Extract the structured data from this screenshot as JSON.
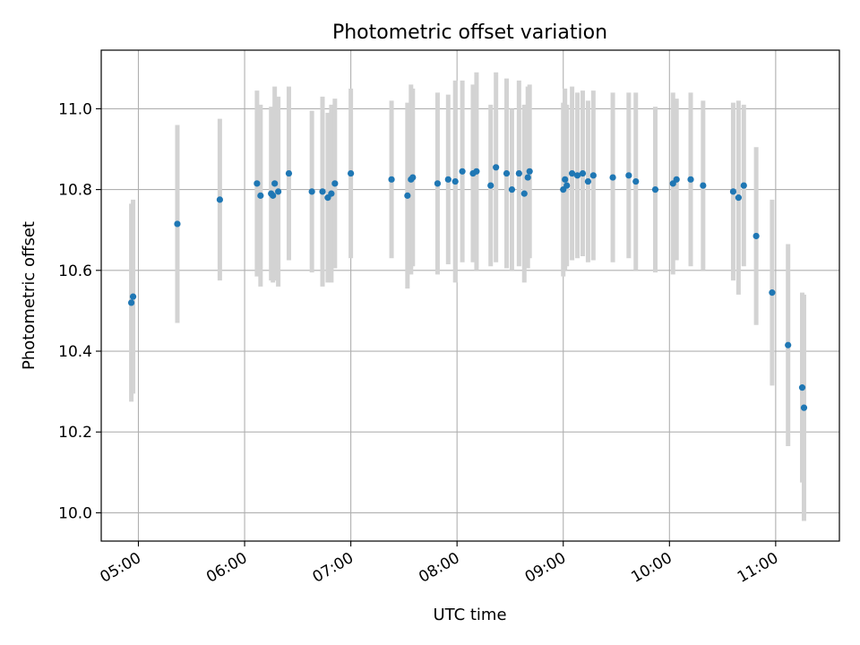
{
  "chart_data": {
    "type": "scatter",
    "title": "Photometric offset variation",
    "xlabel": "UTC time",
    "ylabel": "Photometric offset",
    "xlim": [
      "04:39",
      "11:36"
    ],
    "ylim": [
      9.93,
      11.145
    ],
    "x_ticks": [
      "05:00",
      "06:00",
      "07:00",
      "08:00",
      "09:00",
      "10:00",
      "11:00"
    ],
    "y_ticks": [
      "10.0",
      "10.2",
      "10.4",
      "10.6",
      "10.8",
      "11.0"
    ],
    "grid": true,
    "colors": {
      "points": "#1f77b4",
      "errorbars": "#d3d3d3",
      "grid": "#b0b0b0"
    },
    "points": [
      {
        "time": "04:56",
        "y": 10.52,
        "err": 0.245
      },
      {
        "time": "04:57",
        "y": 10.535,
        "err": 0.24
      },
      {
        "time": "05:22",
        "y": 10.715,
        "err": 0.245
      },
      {
        "time": "05:46",
        "y": 10.775,
        "err": 0.2
      },
      {
        "time": "06:07",
        "y": 10.815,
        "err": 0.23
      },
      {
        "time": "06:09",
        "y": 10.785,
        "err": 0.225
      },
      {
        "time": "06:15",
        "y": 10.79,
        "err": 0.215
      },
      {
        "time": "06:16",
        "y": 10.785,
        "err": 0.215
      },
      {
        "time": "06:17",
        "y": 10.815,
        "err": 0.24
      },
      {
        "time": "06:19",
        "y": 10.795,
        "err": 0.235
      },
      {
        "time": "06:25",
        "y": 10.84,
        "err": 0.215
      },
      {
        "time": "06:38",
        "y": 10.795,
        "err": 0.2
      },
      {
        "time": "06:44",
        "y": 10.795,
        "err": 0.235
      },
      {
        "time": "06:47",
        "y": 10.78,
        "err": 0.21
      },
      {
        "time": "06:49",
        "y": 10.79,
        "err": 0.22
      },
      {
        "time": "06:51",
        "y": 10.815,
        "err": 0.21
      },
      {
        "time": "07:00",
        "y": 10.84,
        "err": 0.21
      },
      {
        "time": "07:23",
        "y": 10.825,
        "err": 0.195
      },
      {
        "time": "07:32",
        "y": 10.785,
        "err": 0.23
      },
      {
        "time": "07:34",
        "y": 10.825,
        "err": 0.235
      },
      {
        "time": "07:35",
        "y": 10.83,
        "err": 0.22
      },
      {
        "time": "07:49",
        "y": 10.815,
        "err": 0.225
      },
      {
        "time": "07:55",
        "y": 10.825,
        "err": 0.21
      },
      {
        "time": "07:59",
        "y": 10.82,
        "err": 0.25
      },
      {
        "time": "08:03",
        "y": 10.845,
        "err": 0.225
      },
      {
        "time": "08:09",
        "y": 10.84,
        "err": 0.22
      },
      {
        "time": "08:11",
        "y": 10.845,
        "err": 0.245
      },
      {
        "time": "08:19",
        "y": 10.81,
        "err": 0.2
      },
      {
        "time": "08:22",
        "y": 10.855,
        "err": 0.235
      },
      {
        "time": "08:28",
        "y": 10.84,
        "err": 0.235
      },
      {
        "time": "08:31",
        "y": 10.8,
        "err": 0.2
      },
      {
        "time": "08:35",
        "y": 10.84,
        "err": 0.23
      },
      {
        "time": "08:38",
        "y": 10.79,
        "err": 0.22
      },
      {
        "time": "08:40",
        "y": 10.83,
        "err": 0.225
      },
      {
        "time": "08:41",
        "y": 10.845,
        "err": 0.215
      },
      {
        "time": "09:00",
        "y": 10.8,
        "err": 0.215
      },
      {
        "time": "09:01",
        "y": 10.825,
        "err": 0.225
      },
      {
        "time": "09:02",
        "y": 10.81,
        "err": 0.2
      },
      {
        "time": "09:05",
        "y": 10.84,
        "err": 0.215
      },
      {
        "time": "09:08",
        "y": 10.835,
        "err": 0.205
      },
      {
        "time": "09:11",
        "y": 10.84,
        "err": 0.205
      },
      {
        "time": "09:14",
        "y": 10.82,
        "err": 0.2
      },
      {
        "time": "09:17",
        "y": 10.835,
        "err": 0.21
      },
      {
        "time": "09:28",
        "y": 10.83,
        "err": 0.21
      },
      {
        "time": "09:37",
        "y": 10.835,
        "err": 0.205
      },
      {
        "time": "09:41",
        "y": 10.82,
        "err": 0.22
      },
      {
        "time": "09:52",
        "y": 10.8,
        "err": 0.205
      },
      {
        "time": "10:02",
        "y": 10.815,
        "err": 0.225
      },
      {
        "time": "10:04",
        "y": 10.825,
        "err": 0.2
      },
      {
        "time": "10:12",
        "y": 10.825,
        "err": 0.215
      },
      {
        "time": "10:19",
        "y": 10.81,
        "err": 0.21
      },
      {
        "time": "10:36",
        "y": 10.795,
        "err": 0.22
      },
      {
        "time": "10:39",
        "y": 10.78,
        "err": 0.24
      },
      {
        "time": "10:42",
        "y": 10.81,
        "err": 0.2
      },
      {
        "time": "10:49",
        "y": 10.685,
        "err": 0.22
      },
      {
        "time": "10:58",
        "y": 10.545,
        "err": 0.23
      },
      {
        "time": "11:07",
        "y": 10.415,
        "err": 0.25
      },
      {
        "time": "11:15",
        "y": 10.31,
        "err": 0.235
      },
      {
        "time": "11:16",
        "y": 10.26,
        "err": 0.28
      }
    ]
  }
}
